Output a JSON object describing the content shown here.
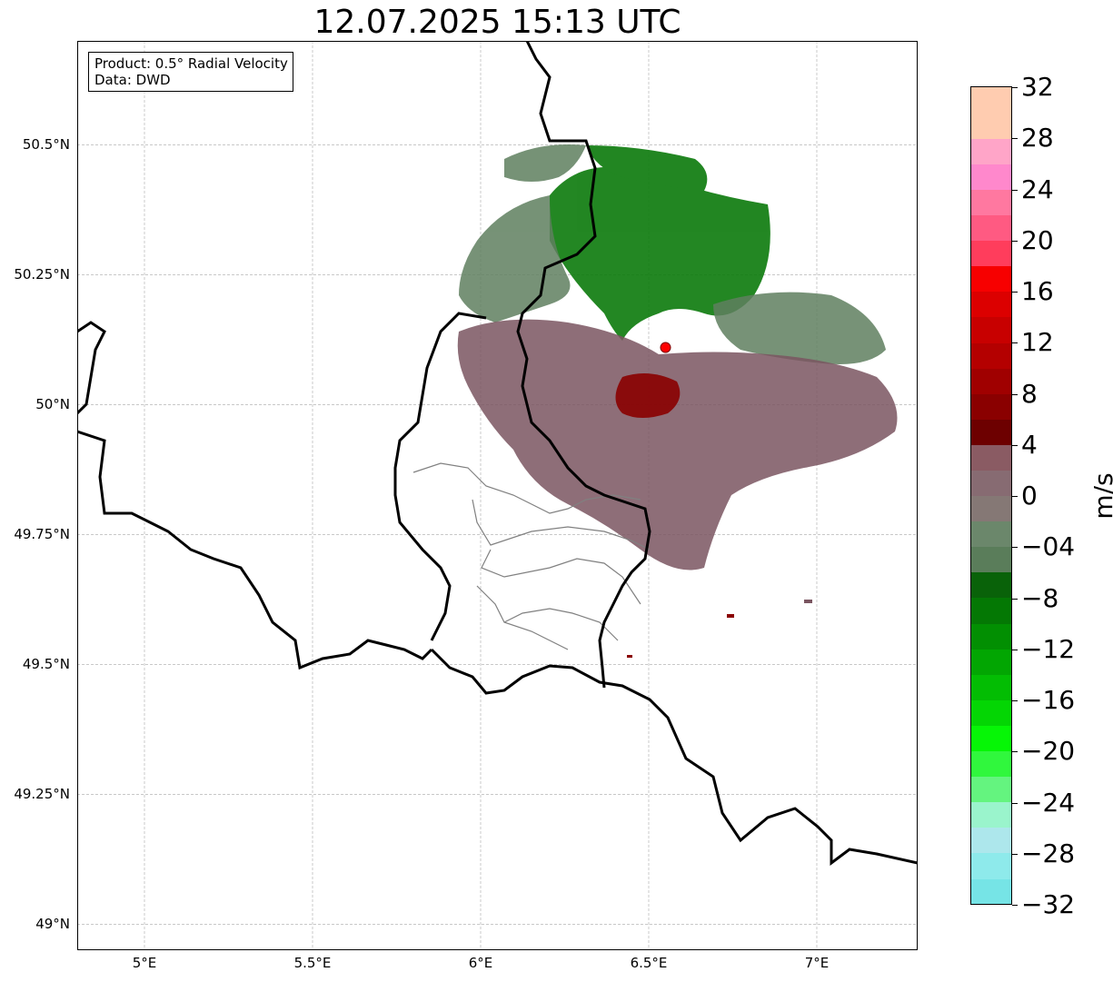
{
  "title": "12.07.2025 15:13 UTC",
  "info_box": {
    "product": "Product: 0.5° Radial Velocity",
    "source": "Data: DWD"
  },
  "map": {
    "lon_range": [
      4.8,
      7.3
    ],
    "lat_range": [
      48.95,
      50.7
    ],
    "lat_ticks": [
      {
        "value": 50.5,
        "label": "50.5°N"
      },
      {
        "value": 50.25,
        "label": "50.25°N"
      },
      {
        "value": 50.0,
        "label": "50°N"
      },
      {
        "value": 49.75,
        "label": "49.75°N"
      },
      {
        "value": 49.5,
        "label": "49.5°N"
      },
      {
        "value": 49.25,
        "label": "49.25°N"
      },
      {
        "value": 49.0,
        "label": "49°N"
      }
    ],
    "lon_ticks": [
      {
        "value": 5.0,
        "label": "5°E"
      },
      {
        "value": 5.5,
        "label": "5.5°E"
      },
      {
        "value": 6.0,
        "label": "6°E"
      },
      {
        "value": 6.5,
        "label": "6.5°E"
      },
      {
        "value": 7.0,
        "label": "7°E"
      }
    ],
    "radar_site": {
      "lon": 6.55,
      "lat": 50.11,
      "color": "#ff0000"
    },
    "border_color": "#000000",
    "subdivision_color": "#808080",
    "grid": true
  },
  "colorbar": {
    "unit": "m/s",
    "min": -32,
    "max": 32,
    "step": 2,
    "tick_labels": [
      "32",
      "28",
      "24",
      "20",
      "16",
      "12",
      "8",
      "4",
      "0",
      "−04",
      "−8",
      "−12",
      "−16",
      "−20",
      "−24",
      "−28",
      "−32"
    ],
    "colors_low_to_high": [
      "#76e4e6",
      "#8eeaeb",
      "#ade7ec",
      "#9af4cc",
      "#64f47f",
      "#30f73d",
      "#06f606",
      "#04d604",
      "#03bd03",
      "#02a602",
      "#028f02",
      "#047804",
      "#096209",
      "#5a7d5a",
      "#6b876b",
      "#857875",
      "#876b72",
      "#8a5b63",
      "#6d0000",
      "#8a0000",
      "#a00000",
      "#b40000",
      "#c80000",
      "#dc0000",
      "#f70000",
      "#ff3d5c",
      "#ff5a82",
      "#ff78a0",
      "#ff88cc",
      "#ffa5c8",
      "#ffccb0",
      "#ffccb0"
    ]
  }
}
